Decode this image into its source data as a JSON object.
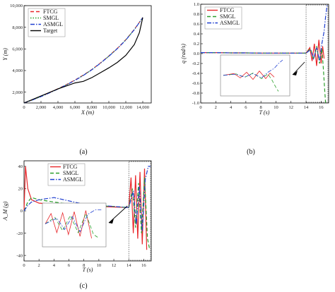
{
  "captions": [
    "(a)",
    "(b)",
    "(c)"
  ],
  "chart_data": [
    {
      "type": "line",
      "xlabel": "X (m)",
      "ylabel": "Y (m)",
      "xlim": [
        0,
        15000
      ],
      "ylim": [
        1000,
        10000
      ],
      "xticks": [
        0,
        2000,
        4000,
        6000,
        8000,
        10000,
        12000,
        14000
      ],
      "xtick_labels": [
        "0",
        "2,000",
        "4,000",
        "6,000",
        "8,000",
        "10,000",
        "12,000",
        "14,000"
      ],
      "yticks": [
        2000,
        4000,
        6000,
        8000,
        10000
      ],
      "ytick_labels": [
        "2,000",
        "4,000",
        "6,000",
        "8,000",
        "10,000"
      ],
      "legend_position": "top-left",
      "series": [
        {
          "name": "FTCG",
          "color": "#e8262a",
          "style": "dash",
          "x": [
            0,
            1000,
            2000,
            3000,
            4000,
            5000,
            6000,
            7000,
            8000,
            9000,
            10000,
            11000,
            12000,
            13000,
            14000
          ],
          "y": [
            1000,
            1300,
            1620,
            1960,
            2320,
            2700,
            3120,
            3580,
            4100,
            4700,
            5350,
            6050,
            6850,
            7800,
            8900
          ]
        },
        {
          "name": "SMGL",
          "color": "#2ca02c",
          "style": "dot",
          "x": [
            0,
            1000,
            2000,
            3000,
            4000,
            5000,
            6000,
            7000,
            8000,
            9000,
            10000,
            11000,
            12000,
            13000,
            14000
          ],
          "y": [
            1000,
            1290,
            1600,
            1940,
            2300,
            2680,
            3100,
            3560,
            4080,
            4680,
            5330,
            6030,
            6830,
            7780,
            8900
          ]
        },
        {
          "name": "ASMGL",
          "color": "#1f3fd0",
          "style": "dashdot",
          "x": [
            0,
            1000,
            2000,
            3000,
            4000,
            5000,
            6000,
            7000,
            8000,
            9000,
            10000,
            11000,
            12000,
            13000,
            14000
          ],
          "y": [
            1000,
            1280,
            1590,
            1930,
            2290,
            2670,
            3090,
            3550,
            4070,
            4670,
            5320,
            6020,
            6820,
            7770,
            8900
          ]
        },
        {
          "name": "Target",
          "color": "#000000",
          "style": "solid",
          "x": [
            0,
            2000,
            4000,
            6000,
            7000,
            8000,
            9000,
            10000,
            11000,
            12000,
            13000,
            13600,
            14000
          ],
          "y": [
            1000,
            1650,
            2300,
            2850,
            3000,
            3350,
            3800,
            4250,
            4750,
            5400,
            6400,
            7500,
            8900
          ]
        }
      ]
    },
    {
      "type": "line",
      "xlabel": "T (s)",
      "ylabel": "q (rad/s)",
      "xlim": [
        0,
        17
      ],
      "ylim": [
        -1.0,
        1.0
      ],
      "xticks": [
        0,
        2,
        4,
        6,
        8,
        10,
        12,
        14,
        16
      ],
      "xtick_labels": [
        "0",
        "2",
        "4",
        "6",
        "8",
        "10",
        "12",
        "14",
        "16"
      ],
      "yticks": [
        -1.0,
        -0.8,
        -0.6,
        -0.4,
        -0.2,
        0.0,
        0.2,
        0.4,
        0.6,
        0.8,
        1.0
      ],
      "ytick_labels": [
        "-1.0",
        "-0.8",
        "-0.6",
        "-0.4",
        "-0.2",
        "0.0",
        "0.2",
        "0.4",
        "0.6",
        "0.8",
        "1.0"
      ],
      "legend_position": "top-left",
      "series": [
        {
          "name": "FTCG",
          "color": "#e8262a",
          "style": "solid",
          "x": [
            0,
            2,
            4,
            6,
            8,
            10,
            12,
            14,
            14.5,
            14.8,
            15.1,
            15.4,
            15.7,
            16.0,
            16.2,
            16.4
          ],
          "y": [
            0.02,
            0.02,
            0.015,
            0.015,
            0.01,
            0.01,
            0.01,
            0.01,
            0.12,
            -0.15,
            0.2,
            -0.25,
            0.28,
            -0.2,
            0.15,
            -0.1
          ]
        },
        {
          "name": "SMGL",
          "color": "#2ca02c",
          "style": "dash",
          "x": [
            0,
            2,
            4,
            6,
            8,
            10,
            12,
            14,
            14.6,
            15.0,
            15.4,
            15.8,
            16.1,
            16.3,
            16.5,
            16.6
          ],
          "y": [
            0.02,
            0.02,
            0.015,
            0.015,
            0.01,
            0.01,
            0.01,
            0.01,
            0.1,
            -0.12,
            0.15,
            -0.2,
            0.1,
            -0.3,
            -0.8,
            -1.0
          ]
        },
        {
          "name": "ASMGL",
          "color": "#1f3fd0",
          "style": "dashdot",
          "x": [
            0,
            2,
            4,
            6,
            8,
            10,
            12,
            14,
            14.6,
            15.0,
            15.4,
            15.8,
            16.1,
            16.4,
            16.6,
            16.8
          ],
          "y": [
            0.02,
            0.02,
            0.015,
            0.015,
            0.01,
            0.01,
            0.01,
            0.01,
            0.08,
            -0.1,
            0.12,
            -0.15,
            0.2,
            0.45,
            0.75,
            0.98
          ]
        }
      ]
    },
    {
      "type": "line",
      "xlabel": "T (s)",
      "ylabel": "A_M (g)",
      "xlim": [
        0,
        17
      ],
      "ylim": [
        -45,
        45
      ],
      "xticks": [
        0,
        2,
        4,
        6,
        8,
        10,
        12,
        14,
        16
      ],
      "xtick_labels": [
        "0",
        "2",
        "4",
        "6",
        "8",
        "10",
        "12",
        "14",
        "16"
      ],
      "yticks": [
        -40,
        -20,
        0,
        20,
        40
      ],
      "ytick_labels": [
        "-40",
        "-20",
        "0",
        "20",
        "40"
      ],
      "legend_position": "top-center",
      "series": [
        {
          "name": "FTCG",
          "color": "#e8262a",
          "style": "solid",
          "x": [
            0,
            0.2,
            0.5,
            1,
            2,
            4,
            6,
            8,
            10,
            12,
            14,
            14.3,
            14.6,
            14.9,
            15.2,
            15.5,
            15.8,
            16.1,
            16.4
          ],
          "y": [
            0,
            40,
            20,
            10,
            7,
            6,
            5,
            4.5,
            4,
            3.5,
            3,
            30,
            -20,
            32,
            -25,
            35,
            -30,
            38,
            -35
          ]
        },
        {
          "name": "SMGL",
          "color": "#2ca02c",
          "style": "dash",
          "x": [
            0,
            0.5,
            1,
            2,
            4,
            6,
            8,
            10,
            12,
            14,
            14.5,
            14.9,
            15.3,
            15.7,
            16.1,
            16.5,
            16.8
          ],
          "y": [
            0,
            8,
            12,
            10,
            8,
            6,
            5,
            4.5,
            4,
            3,
            20,
            -15,
            25,
            -20,
            30,
            -25,
            -35
          ]
        },
        {
          "name": "ASMGL",
          "color": "#1f3fd0",
          "style": "dashdot",
          "x": [
            0,
            0.5,
            1,
            2,
            4,
            6,
            8,
            10,
            12,
            14,
            14.6,
            15.0,
            15.4,
            15.8,
            16.2,
            16.6,
            16.9
          ],
          "y": [
            0,
            5,
            8,
            10,
            12,
            9,
            6,
            5,
            4,
            3,
            18,
            -12,
            22,
            -18,
            28,
            40,
            40
          ]
        }
      ]
    }
  ]
}
